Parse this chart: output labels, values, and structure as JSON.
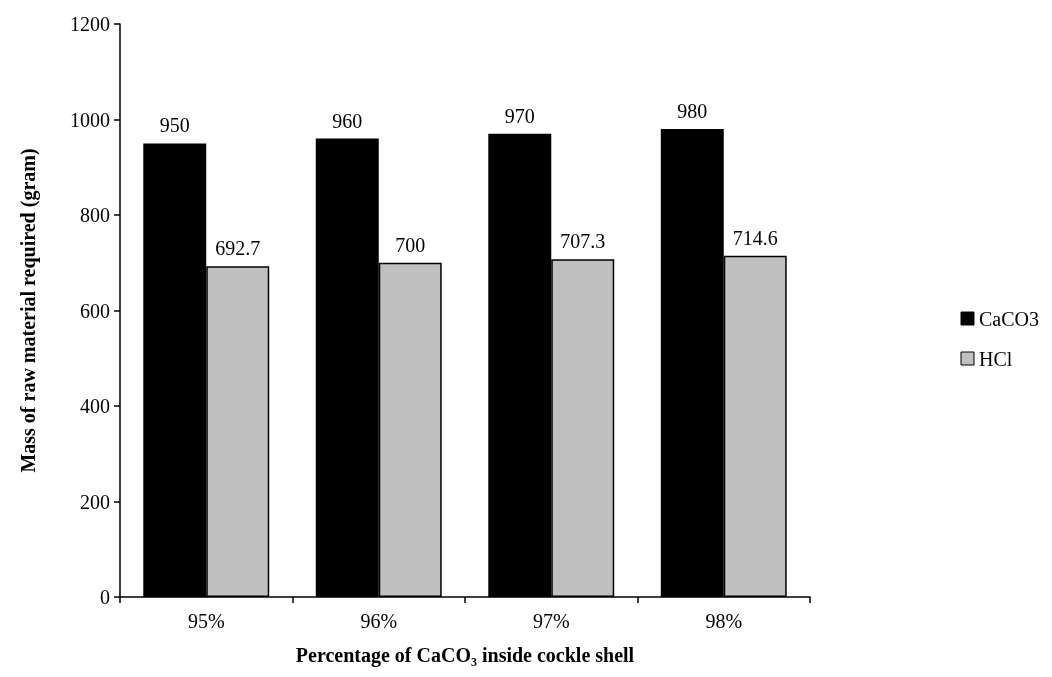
{
  "chart_data": {
    "type": "bar",
    "xlabel": "Percentage of CaCO₃ inside cockle shell",
    "ylabel": "Mass of raw material required (gram)",
    "categories": [
      "95%",
      "96%",
      "97%",
      "98%"
    ],
    "series": [
      {
        "name": "CaCO3",
        "color": "#000000",
        "values": [
          950,
          960,
          970,
          980
        ]
      },
      {
        "name": "HCl",
        "color": "#c0c0c0",
        "values": [
          692.7,
          700,
          707.3,
          714.6
        ]
      }
    ],
    "ylim": [
      0,
      1200
    ],
    "yticks": [
      0,
      200,
      400,
      600,
      800,
      1000,
      1200
    ],
    "grid": false,
    "legend": "right",
    "data_labels": true
  }
}
